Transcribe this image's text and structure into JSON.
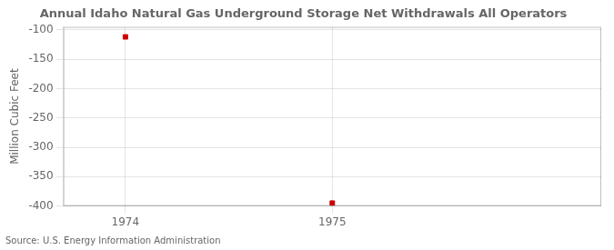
{
  "chart_data": {
    "type": "scatter",
    "title": "Annual Idaho Natural Gas Underground Storage Net Withdrawals All Operators",
    "ylabel": "Million Cubic Feet",
    "annotations": [
      "Source: U.S. Energy Information Administration"
    ],
    "x": [
      1974,
      1975
    ],
    "values": [
      -112,
      -395
    ],
    "color": "#cc0000",
    "marker": "square",
    "xlim": [
      1973.7,
      1976.3
    ],
    "ylim": [
      -400,
      -95
    ],
    "xticks": [
      1974,
      1975
    ],
    "yticks": [
      -100,
      -150,
      -200,
      -250,
      -300,
      -350,
      -400
    ],
    "grid": true
  }
}
